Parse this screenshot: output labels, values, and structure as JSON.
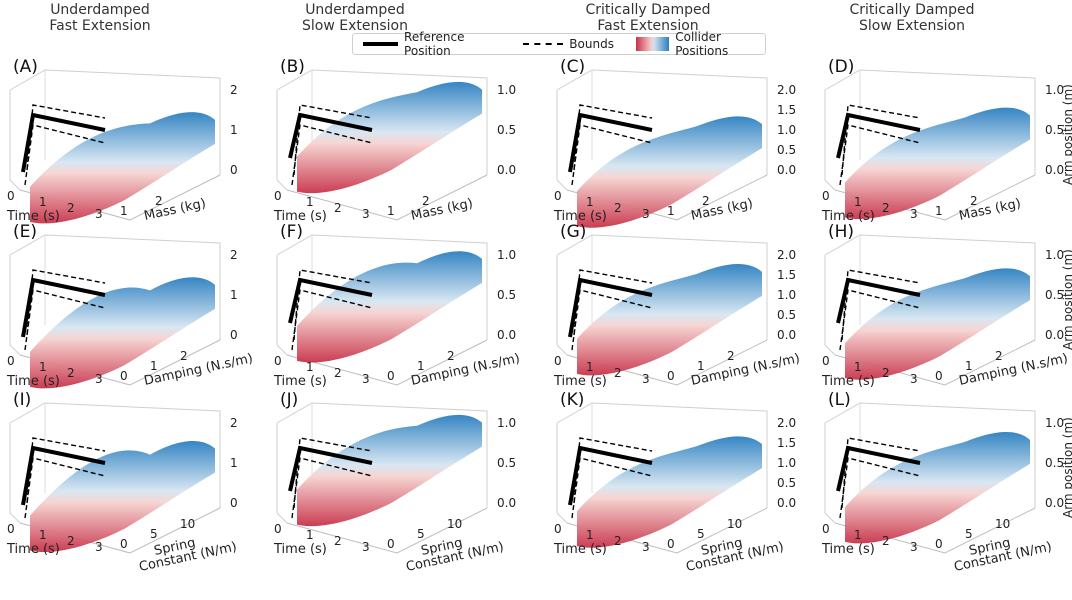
{
  "column_headers": [
    {
      "line1": "Underdamped",
      "line2": "Fast Extension"
    },
    {
      "line1": "Underdamped",
      "line2": "Slow Extension"
    },
    {
      "line1": "Critically Damped",
      "line2": "Fast Extension"
    },
    {
      "line1": "Critically Damped",
      "line2": "Slow Extension"
    }
  ],
  "legend": {
    "reference": "Reference Position",
    "bounds": "Bounds",
    "collider": "Collider Positions"
  },
  "axis_text": {
    "time_label": "Time (s)",
    "z_label": "Arm position (m)",
    "time_ticks": [
      "0",
      "1",
      "2",
      "3"
    ],
    "time_ticks_short": [
      "0",
      "1",
      "2"
    ]
  },
  "colors": {
    "reference": "#000000",
    "bounds": "#000000",
    "collider_low": "#c8334a",
    "collider_mid": "#f4f4f4",
    "collider_high": "#2b7fc0"
  },
  "chart_data": [
    {
      "panel": "(A)",
      "type": "surface",
      "regime": "Underdamped Fast Extension",
      "param_label": "Mass (kg)",
      "param_ticks": [
        "1",
        "2"
      ],
      "zticks": [
        "0",
        "1",
        "2"
      ],
      "zlim": [
        0,
        2.2
      ],
      "peak": 1.0,
      "overshoot": 0.25
    },
    {
      "panel": "(B)",
      "type": "surface",
      "regime": "Underdamped Slow Extension",
      "param_label": "Mass (kg)",
      "param_ticks": [
        "1",
        "2"
      ],
      "zticks": [
        "0.0",
        "0.5",
        "1.0"
      ],
      "zlim": [
        -0.1,
        1.1
      ],
      "peak": 0.85,
      "overshoot": 0.1
    },
    {
      "panel": "(C)",
      "type": "surface",
      "regime": "Critically Damped Fast Extension",
      "param_label": "Mass (kg)",
      "param_ticks": [
        "1",
        "2"
      ],
      "zticks": [
        "0.0",
        "0.5",
        "1.0",
        "1.5",
        "2.0"
      ],
      "zlim": [
        -0.1,
        2.2
      ],
      "peak": 0.9,
      "overshoot": 0.0
    },
    {
      "panel": "(D)",
      "type": "surface",
      "regime": "Critically Damped Slow Extension",
      "param_label": "Mass (kg)",
      "param_ticks": [
        "1",
        "2"
      ],
      "zticks": [
        "0.0",
        "0.5",
        "1.0"
      ],
      "zlim": [
        -0.1,
        1.1
      ],
      "peak": 0.55,
      "overshoot": 0.0
    },
    {
      "panel": "(E)",
      "type": "surface",
      "regime": "Underdamped Fast Extension",
      "param_label": "Damping (N.s/m)",
      "param_ticks": [
        "0",
        "1",
        "2"
      ],
      "zticks": [
        "0",
        "1",
        "2"
      ],
      "zlim": [
        0,
        2.2
      ],
      "peak": 1.0,
      "overshoot": 0.6
    },
    {
      "panel": "(F)",
      "type": "surface",
      "regime": "Underdamped Slow Extension",
      "param_label": "Damping (N.s/m)",
      "param_ticks": [
        "0",
        "1",
        "2"
      ],
      "zticks": [
        "0.0",
        "0.5",
        "1.0"
      ],
      "zlim": [
        -0.1,
        1.1
      ],
      "peak": 0.8,
      "overshoot": 0.4
    },
    {
      "panel": "(G)",
      "type": "surface",
      "regime": "Critically Damped Fast Extension",
      "param_label": "Damping (N.s/m)",
      "param_ticks": [
        "0",
        "1",
        "2"
      ],
      "zticks": [
        "0.0",
        "0.5",
        "1.0",
        "1.5",
        "2.0"
      ],
      "zlim": [
        -0.1,
        2.2
      ],
      "peak": 1.3,
      "overshoot": 0.0
    },
    {
      "panel": "(H)",
      "type": "surface",
      "regime": "Critically Damped Slow Extension",
      "param_label": "Damping (N.s/m)",
      "param_ticks": [
        "0",
        "1",
        "2"
      ],
      "zticks": [
        "0.0",
        "0.5",
        "1.0"
      ],
      "zlim": [
        -0.1,
        1.1
      ],
      "peak": 0.6,
      "overshoot": 0.0
    },
    {
      "panel": "(I)",
      "type": "surface",
      "regime": "Underdamped Fast Extension",
      "param_label": "Spring\nConstant (N/m)",
      "param_ticks": [
        "0",
        "5",
        "10"
      ],
      "zticks": [
        "0",
        "1",
        "2"
      ],
      "zlim": [
        0,
        2.2
      ],
      "peak": 1.1,
      "overshoot": 0.7
    },
    {
      "panel": "(J)",
      "type": "surface",
      "regime": "Underdamped Slow Extension",
      "param_label": "Spring\nConstant (N/m)",
      "param_ticks": [
        "0",
        "5",
        "10"
      ],
      "zticks": [
        "0.0",
        "0.5",
        "1.0"
      ],
      "zlim": [
        -0.1,
        1.1
      ],
      "peak": 0.85,
      "overshoot": 0.2
    },
    {
      "panel": "(K)",
      "type": "surface",
      "regime": "Critically Damped Fast Extension",
      "param_label": "Spring\nConstant (N/m)",
      "param_ticks": [
        "0",
        "5",
        "10"
      ],
      "zticks": [
        "0.0",
        "0.5",
        "1.0",
        "1.5",
        "2.0"
      ],
      "zlim": [
        -0.1,
        2.2
      ],
      "peak": 1.2,
      "overshoot": 0.0
    },
    {
      "panel": "(L)",
      "type": "surface",
      "regime": "Critically Damped Slow Extension",
      "param_label": "Spring\nConstant (N/m)",
      "param_ticks": [
        "0",
        "5",
        "10"
      ],
      "zticks": [
        "0.0",
        "0.5",
        "1.0"
      ],
      "zlim": [
        -0.1,
        1.1
      ],
      "peak": 0.65,
      "overshoot": 0.0
    }
  ]
}
